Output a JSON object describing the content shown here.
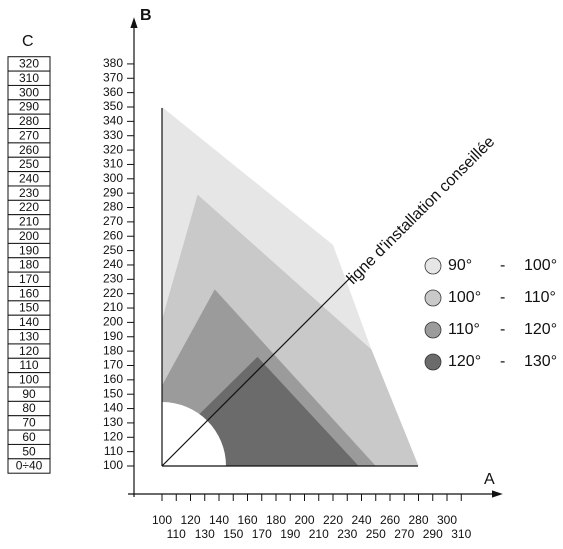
{
  "axes": {
    "a": {
      "label": "A",
      "ticks": [
        100,
        110,
        120,
        130,
        140,
        150,
        160,
        170,
        180,
        190,
        200,
        210,
        220,
        230,
        240,
        250,
        260,
        270,
        280,
        290,
        300,
        310
      ]
    },
    "b": {
      "label": "B",
      "ticks": [
        100,
        110,
        120,
        130,
        140,
        150,
        160,
        170,
        180,
        190,
        200,
        210,
        220,
        230,
        240,
        250,
        260,
        270,
        280,
        290,
        300,
        310,
        320,
        330,
        340,
        350,
        360,
        370,
        380
      ]
    }
  },
  "c_column": {
    "label": "C",
    "values": [
      "320",
      "310",
      "300",
      "290",
      "280",
      "270",
      "260",
      "250",
      "240",
      "230",
      "220",
      "210",
      "200",
      "190",
      "180",
      "170",
      "160",
      "150",
      "140",
      "130",
      "120",
      "110",
      "100",
      "90",
      "80",
      "70",
      "60",
      "50",
      "0÷40"
    ]
  },
  "regions": [
    {
      "from": "90°",
      "separator": "-",
      "to": "100°",
      "color": "#e6e6e6",
      "points": [
        [
          100,
          100
        ],
        [
          100,
          350
        ],
        [
          220,
          254
        ],
        [
          247,
          181
        ],
        [
          280,
          100
        ]
      ]
    },
    {
      "from": "100°",
      "separator": "-",
      "to": "110°",
      "color": "#c9c9c9",
      "points": [
        [
          100,
          100
        ],
        [
          100,
          202
        ],
        [
          125,
          289
        ],
        [
          247,
          181
        ],
        [
          280,
          100
        ]
      ]
    },
    {
      "from": "110°",
      "separator": "-",
      "to": "120°",
      "color": "#9b9b9b",
      "points": [
        [
          100,
          100
        ],
        [
          100,
          156
        ],
        [
          137,
          223
        ],
        [
          250,
          100
        ]
      ]
    },
    {
      "from": "120°",
      "separator": "-",
      "to": "130°",
      "color": "#6b6b6b",
      "points": [
        [
          120,
          100
        ],
        [
          120,
          130
        ],
        [
          167,
          176
        ],
        [
          238,
          100
        ]
      ]
    }
  ],
  "annotation": "ligne d'installation conseillée"
}
